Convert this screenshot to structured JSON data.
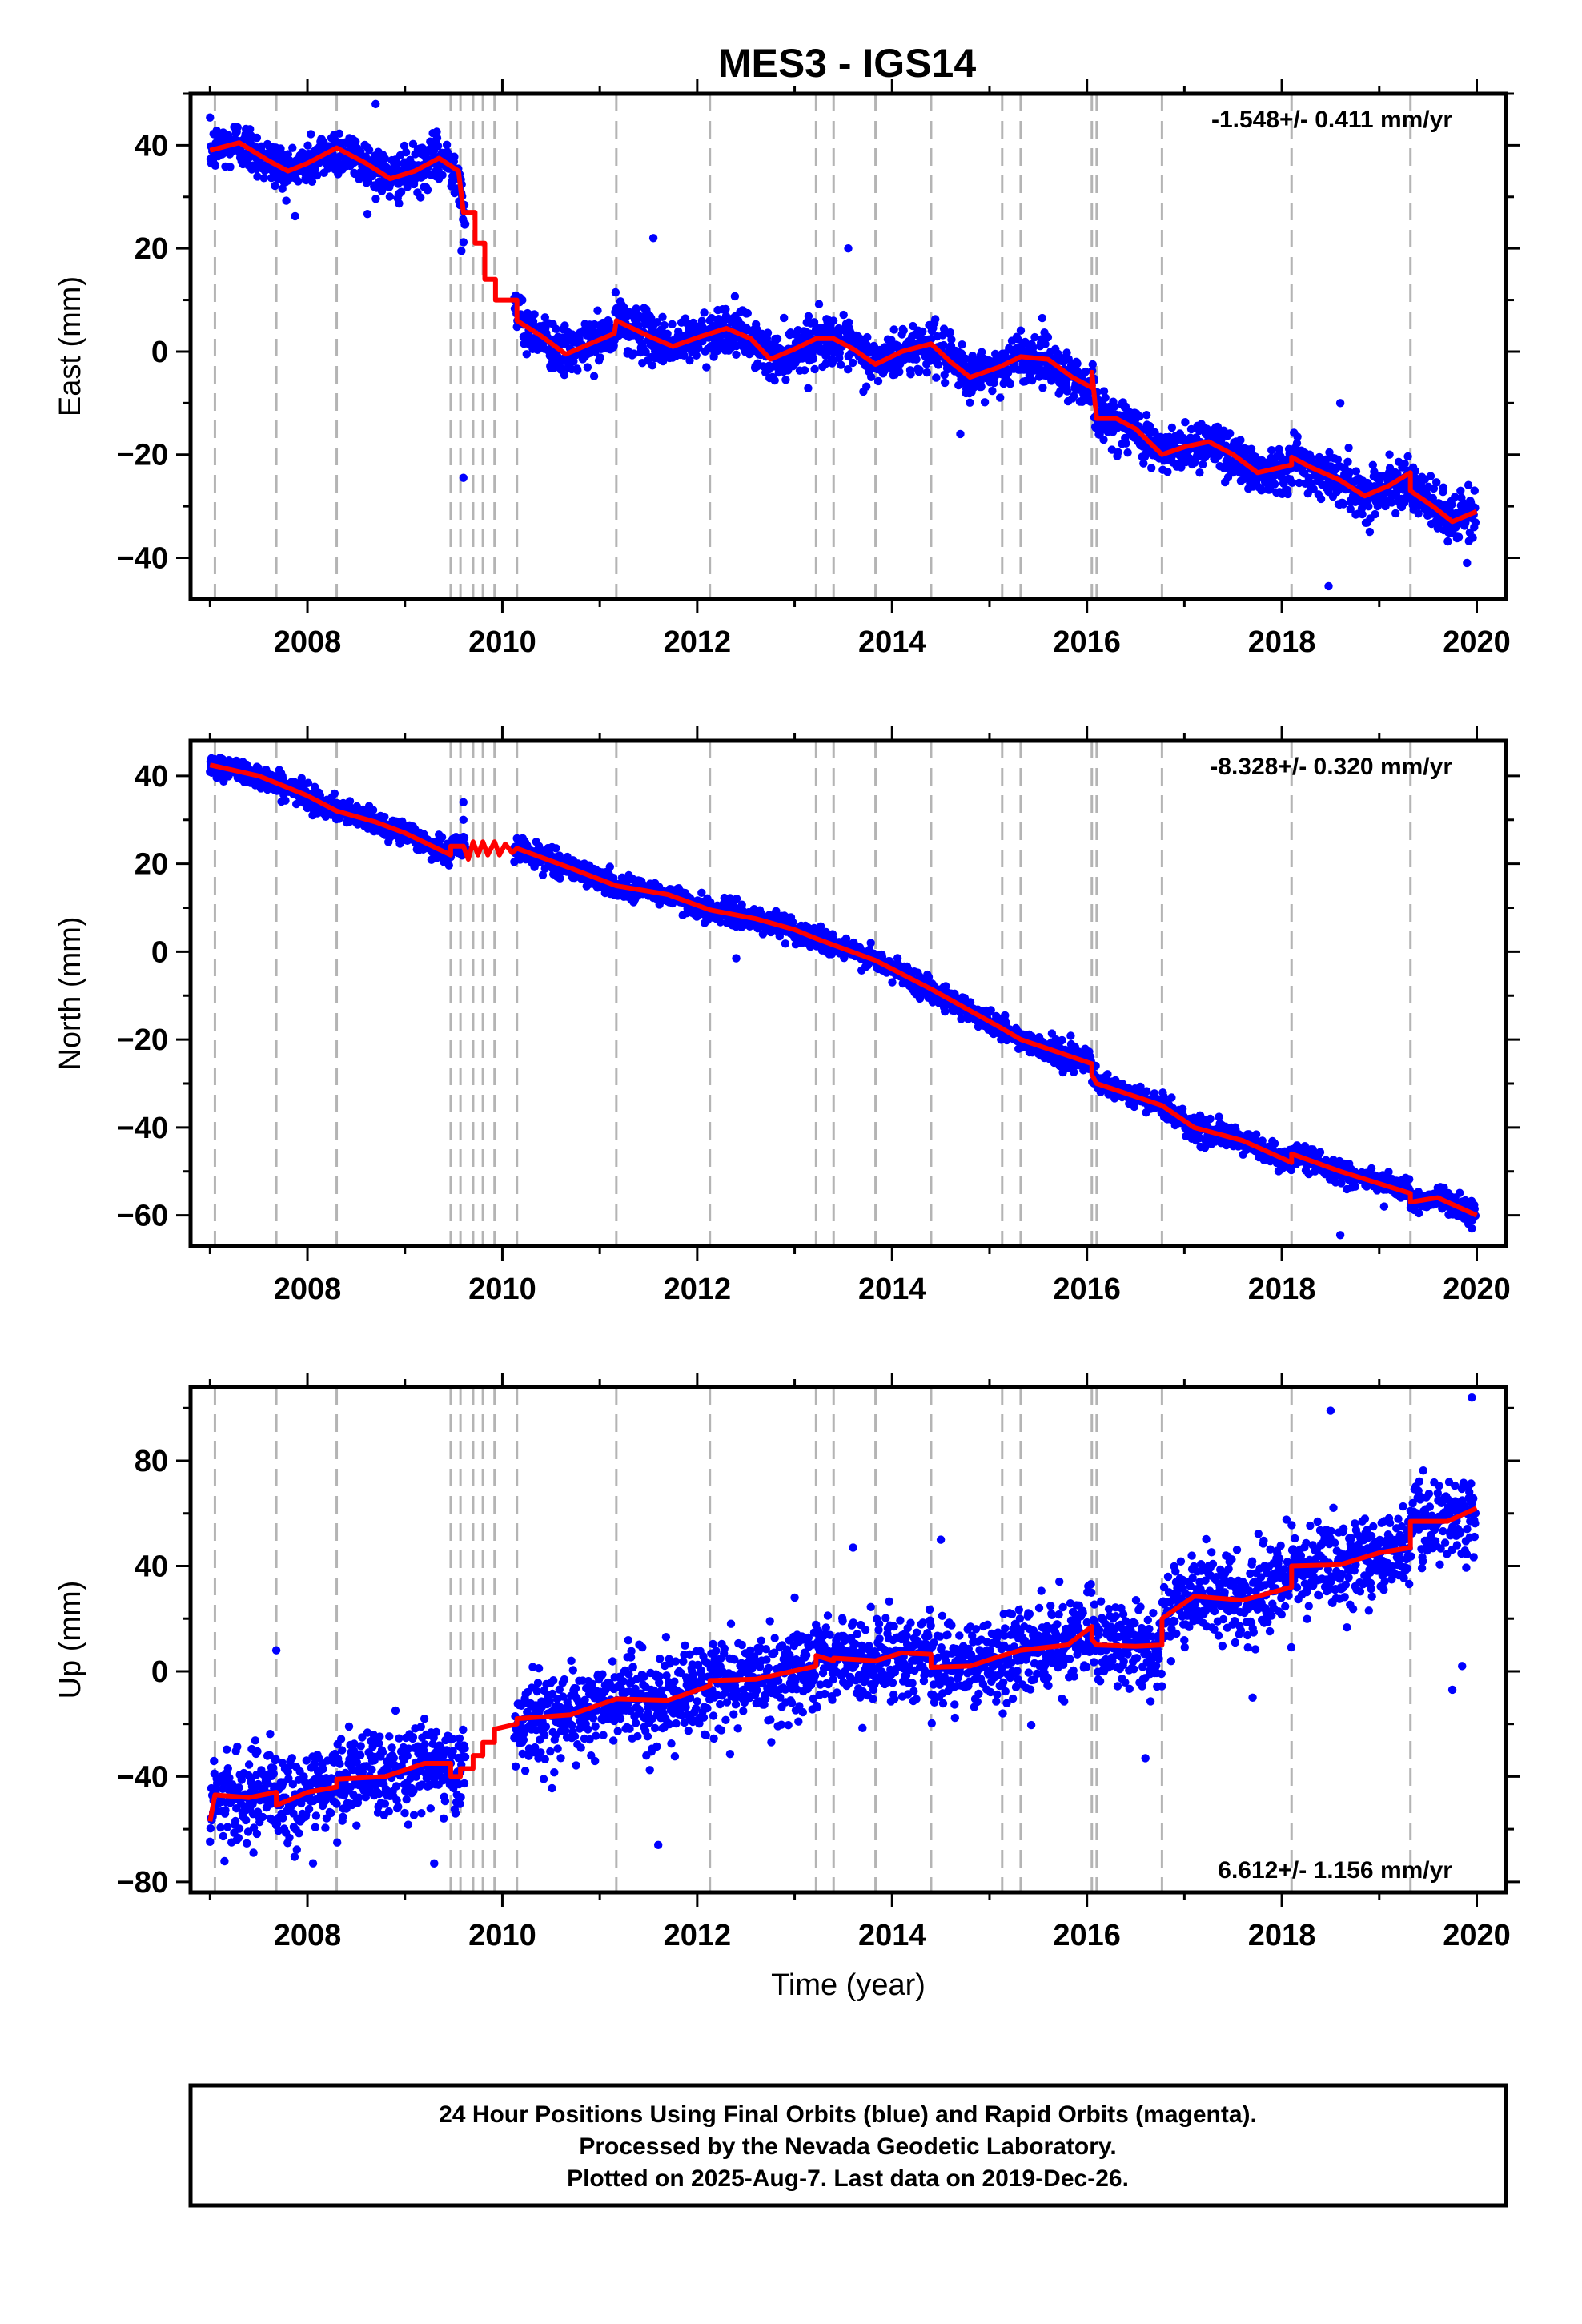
{
  "figure": {
    "title": "MES3 - IGS14",
    "footer_lines": [
      "24 Hour Positions Using Final Orbits (blue) and Rapid Orbits (magenta).",
      "Processed by the Nevada Geodetic Laboratory.",
      "Plotted on 2025-Aug-7. Last data on 2019-Dec-26."
    ],
    "colors": {
      "final_orbits": "#0000ff",
      "model_fit": "#ff0000",
      "event_lines": "#b4b4b4"
    }
  },
  "chart_data": [
    {
      "type": "scatter",
      "ylabel": "East (mm)",
      "xlabel": "",
      "xlim": [
        2006.8,
        2020.3
      ],
      "ylim": [
        -48,
        50
      ],
      "x_ticks": [
        2008,
        2010,
        2012,
        2014,
        2016,
        2018,
        2020
      ],
      "y_ticks": [
        -40,
        -20,
        0,
        20,
        40
      ],
      "rate_label": "-1.548+/- 0.411 mm/yr",
      "rate_position": "top-right",
      "grid": false,
      "event_lines": [
        2007.05,
        2007.68,
        2008.3,
        2009.47,
        2009.57,
        2009.7,
        2009.8,
        2009.92,
        2010.15,
        2011.17,
        2012.13,
        2013.22,
        2013.4,
        2013.83,
        2014.4,
        2015.13,
        2015.32,
        2016.05,
        2016.1,
        2016.77,
        2018.1,
        2019.32
      ],
      "fit_line": [
        [
          2007.0,
          39
        ],
        [
          2007.3,
          40.5
        ],
        [
          2007.6,
          37
        ],
        [
          2007.8,
          35
        ],
        [
          2008.0,
          36.5
        ],
        [
          2008.3,
          39.5
        ],
        [
          2008.6,
          36.5
        ],
        [
          2008.85,
          33.5
        ],
        [
          2009.1,
          35
        ],
        [
          2009.35,
          37.5
        ],
        [
          2009.55,
          35
        ],
        [
          2009.6,
          27
        ],
        [
          2009.72,
          27
        ],
        [
          2009.72,
          21
        ],
        [
          2009.82,
          21
        ],
        [
          2009.82,
          14
        ],
        [
          2009.93,
          14
        ],
        [
          2009.93,
          10
        ],
        [
          2010.15,
          10
        ],
        [
          2010.15,
          6
        ],
        [
          2010.4,
          3
        ],
        [
          2010.65,
          -0.5
        ],
        [
          2010.9,
          1.5
        ],
        [
          2011.15,
          3.5
        ],
        [
          2011.17,
          6
        ],
        [
          2011.5,
          3
        ],
        [
          2011.75,
          1
        ],
        [
          2012.05,
          3
        ],
        [
          2012.3,
          4.5
        ],
        [
          2012.55,
          2.5
        ],
        [
          2012.75,
          -1.5
        ],
        [
          2013.0,
          0.5
        ],
        [
          2013.22,
          2.5
        ],
        [
          2013.4,
          2.5
        ],
        [
          2013.6,
          0.5
        ],
        [
          2013.83,
          -2.5
        ],
        [
          2014.1,
          0
        ],
        [
          2014.4,
          1.5
        ],
        [
          2014.6,
          -2
        ],
        [
          2014.8,
          -5
        ],
        [
          2015.1,
          -3
        ],
        [
          2015.32,
          -1
        ],
        [
          2015.6,
          -1.5
        ],
        [
          2015.85,
          -5
        ],
        [
          2016.05,
          -7
        ],
        [
          2016.05,
          -4
        ],
        [
          2016.1,
          -13
        ],
        [
          2016.3,
          -13
        ],
        [
          2016.5,
          -15
        ],
        [
          2016.77,
          -20
        ],
        [
          2017.0,
          -18.5
        ],
        [
          2017.25,
          -17.5
        ],
        [
          2017.5,
          -20
        ],
        [
          2017.75,
          -23.5
        ],
        [
          2018.1,
          -22
        ],
        [
          2018.1,
          -20.5
        ],
        [
          2018.3,
          -22.5
        ],
        [
          2018.6,
          -25
        ],
        [
          2018.85,
          -28
        ],
        [
          2019.1,
          -26
        ],
        [
          2019.32,
          -23.5
        ],
        [
          2019.32,
          -27
        ],
        [
          2019.55,
          -30
        ],
        [
          2019.75,
          -33
        ],
        [
          2020.0,
          -31
        ]
      ],
      "scatter_model": {
        "outliers": [
          [
            2008.7,
            48
          ],
          [
            2009.6,
            -24.5
          ],
          [
            2009.58,
            19.5
          ],
          [
            2011.55,
            22
          ],
          [
            2013.55,
            20
          ],
          [
            2018.6,
            -10
          ],
          [
            2018.48,
            -45.5
          ],
          [
            2019.9,
            -41
          ],
          [
            2014.7,
            -16
          ]
        ],
        "scatter_sd": 2.3,
        "gaps": [
          [
            2009.62,
            2010.12
          ]
        ]
      }
    },
    {
      "type": "scatter",
      "ylabel": "North (mm)",
      "xlabel": "",
      "xlim": [
        2006.8,
        2020.3
      ],
      "ylim": [
        -67,
        48
      ],
      "x_ticks": [
        2008,
        2010,
        2012,
        2014,
        2016,
        2018,
        2020
      ],
      "y_ticks": [
        -60,
        -40,
        -20,
        0,
        20,
        40
      ],
      "rate_label": "-8.328+/- 0.320 mm/yr",
      "rate_position": "top-right",
      "grid": false,
      "event_lines": [
        2007.05,
        2007.68,
        2008.3,
        2009.47,
        2009.57,
        2009.7,
        2009.8,
        2009.92,
        2010.15,
        2011.17,
        2012.13,
        2013.22,
        2013.4,
        2013.83,
        2014.4,
        2015.13,
        2015.32,
        2016.05,
        2016.1,
        2016.77,
        2018.1,
        2019.32
      ],
      "fit_line": [
        [
          2007.0,
          42.5
        ],
        [
          2007.5,
          40
        ],
        [
          2008.0,
          35.5
        ],
        [
          2008.3,
          32
        ],
        [
          2008.7,
          29.5
        ],
        [
          2009.0,
          27
        ],
        [
          2009.47,
          22
        ],
        [
          2009.47,
          24
        ],
        [
          2009.57,
          24
        ],
        [
          2009.6,
          24
        ],
        [
          2009.65,
          21
        ],
        [
          2009.7,
          25
        ],
        [
          2009.75,
          22
        ],
        [
          2009.8,
          25
        ],
        [
          2009.85,
          22
        ],
        [
          2009.92,
          25
        ],
        [
          2009.97,
          22
        ],
        [
          2010.03,
          24.5
        ],
        [
          2010.1,
          22.5
        ],
        [
          2010.15,
          23.5
        ],
        [
          2010.7,
          19
        ],
        [
          2011.17,
          15
        ],
        [
          2011.7,
          13
        ],
        [
          2012.13,
          9.5
        ],
        [
          2012.6,
          7.5
        ],
        [
          2013.0,
          5
        ],
        [
          2013.22,
          3
        ],
        [
          2013.4,
          1.5
        ],
        [
          2013.83,
          -2
        ],
        [
          2014.4,
          -8.5
        ],
        [
          2015.13,
          -17.5
        ],
        [
          2015.32,
          -20
        ],
        [
          2016.05,
          -25.5
        ],
        [
          2016.05,
          -28
        ],
        [
          2016.1,
          -30
        ],
        [
          2016.77,
          -35
        ],
        [
          2017.1,
          -40
        ],
        [
          2017.6,
          -43
        ],
        [
          2018.1,
          -48
        ],
        [
          2018.1,
          -46
        ],
        [
          2018.6,
          -50
        ],
        [
          2019.32,
          -55
        ],
        [
          2019.32,
          -57
        ],
        [
          2019.6,
          -56
        ],
        [
          2020.0,
          -60
        ]
      ],
      "scatter_model": {
        "outliers": [
          [
            2009.6,
            34
          ],
          [
            2009.6,
            30
          ],
          [
            2018.6,
            -64.5
          ],
          [
            2012.4,
            -1.5
          ],
          [
            2019.05,
            -58
          ],
          [
            2019.95,
            -63
          ]
        ],
        "scatter_sd": 1.3,
        "gaps": [
          [
            2009.62,
            2010.12
          ]
        ]
      }
    },
    {
      "type": "scatter",
      "ylabel": "Up (mm)",
      "xlabel": "Time (year)",
      "xlim": [
        2006.8,
        2020.3
      ],
      "ylim": [
        -84,
        108
      ],
      "x_ticks": [
        2008,
        2010,
        2012,
        2014,
        2016,
        2018,
        2020
      ],
      "y_ticks": [
        -80,
        -40,
        0,
        40,
        80
      ],
      "rate_label": "6.612+/- 1.156 mm/yr",
      "rate_position": "bottom-right",
      "grid": false,
      "event_lines": [
        2007.05,
        2007.68,
        2008.3,
        2009.47,
        2009.57,
        2009.7,
        2009.8,
        2009.92,
        2010.15,
        2011.17,
        2012.13,
        2013.22,
        2013.4,
        2013.83,
        2014.4,
        2015.13,
        2015.32,
        2016.05,
        2016.1,
        2016.77,
        2018.1,
        2019.32
      ],
      "fit_line": [
        [
          2007.0,
          -57
        ],
        [
          2007.05,
          -47
        ],
        [
          2007.4,
          -48
        ],
        [
          2007.68,
          -46
        ],
        [
          2007.68,
          -51
        ],
        [
          2008.0,
          -46
        ],
        [
          2008.3,
          -44
        ],
        [
          2008.3,
          -41
        ],
        [
          2008.8,
          -40
        ],
        [
          2009.2,
          -35
        ],
        [
          2009.47,
          -35
        ],
        [
          2009.47,
          -40
        ],
        [
          2009.57,
          -40
        ],
        [
          2009.57,
          -37
        ],
        [
          2009.7,
          -37
        ],
        [
          2009.7,
          -32
        ],
        [
          2009.8,
          -32
        ],
        [
          2009.8,
          -27
        ],
        [
          2009.92,
          -27
        ],
        [
          2009.92,
          -22
        ],
        [
          2010.15,
          -20
        ],
        [
          2010.15,
          -18
        ],
        [
          2010.7,
          -16.5
        ],
        [
          2011.17,
          -10.5
        ],
        [
          2011.7,
          -11
        ],
        [
          2012.13,
          -5.5
        ],
        [
          2012.13,
          -3.5
        ],
        [
          2012.6,
          -3
        ],
        [
          2013.22,
          2
        ],
        [
          2013.22,
          6
        ],
        [
          2013.4,
          4
        ],
        [
          2013.4,
          5
        ],
        [
          2013.83,
          4
        ],
        [
          2014.1,
          7
        ],
        [
          2014.4,
          6.5
        ],
        [
          2014.4,
          1.5
        ],
        [
          2014.8,
          2
        ],
        [
          2015.13,
          6
        ],
        [
          2015.32,
          8
        ],
        [
          2015.8,
          10
        ],
        [
          2016.05,
          17
        ],
        [
          2016.05,
          12
        ],
        [
          2016.1,
          10
        ],
        [
          2016.5,
          9.5
        ],
        [
          2016.77,
          10
        ],
        [
          2016.77,
          20
        ],
        [
          2017.1,
          28.5
        ],
        [
          2017.6,
          27
        ],
        [
          2018.1,
          32
        ],
        [
          2018.1,
          40
        ],
        [
          2018.6,
          40.5
        ],
        [
          2019.0,
          45
        ],
        [
          2019.32,
          47
        ],
        [
          2019.32,
          57
        ],
        [
          2019.7,
          57
        ],
        [
          2020.0,
          62
        ]
      ],
      "scatter_model": {
        "outliers": [
          [
            2007.68,
            8
          ],
          [
            2011.6,
            -66
          ],
          [
            2017.7,
            -10
          ],
          [
            2018.5,
            99
          ],
          [
            2019.95,
            104
          ],
          [
            2019.85,
            2
          ],
          [
            2019.75,
            -7
          ],
          [
            2016.6,
            -33
          ],
          [
            2013.6,
            47
          ],
          [
            2014.5,
            50
          ],
          [
            2013.0,
            28
          ],
          [
            2009.3,
            -73
          ]
        ],
        "scatter_sd": 8.0,
        "gaps": [
          [
            2009.62,
            2010.12
          ]
        ]
      }
    }
  ]
}
